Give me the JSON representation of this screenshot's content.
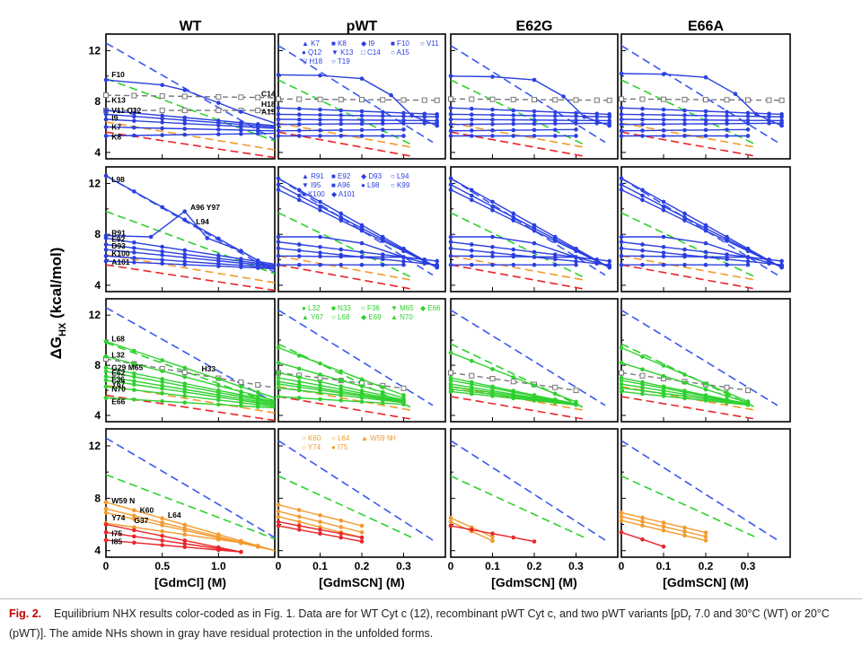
{
  "figure": {
    "y_axis_label": "ΔG",
    "y_axis_sub": "HX",
    "y_axis_unit": " (kcal/mol)",
    "column_titles": [
      "WT",
      "pWT",
      "E62G",
      "E66A"
    ],
    "x_axis_labels": [
      "[GdmCl] (M)",
      "[GdmSCN] (M)",
      "[GdmSCN] (M)",
      "[GdmSCN] (M)"
    ],
    "colors": {
      "blue": "#2b3fe0",
      "green": "#2ed12e",
      "orange": "#f39a2e",
      "red": "#e8262b",
      "gray": "#777777",
      "blue_dash": "#3a58f0",
      "green_dash": "#2ed12e",
      "orange_dash": "#f39a2e",
      "red_dash": "#e8262b"
    }
  },
  "caption": {
    "label": "Fig. 2.",
    "text": "Equilibrium NHX results color-coded as in Fig. 1. Data are for WT Cyt c (12), recombinant pWT Cyt c, and two pWT variants [pD",
    "pd_r": "r",
    "text2": " 7.0 and 30°C (WT) or 20°C (pWT)]. The amide NHs shown in gray have residual protection in the unfolded forms."
  },
  "chart_data": [
    {
      "type": "line",
      "panel": "WT-blue",
      "xlim": [
        0,
        1.5
      ],
      "ylim": [
        3.5,
        13.3
      ],
      "x_ticks": [
        0,
        0.5,
        1.0
      ],
      "y_ticks": [
        4,
        8,
        12
      ],
      "labels": [
        {
          "text": "F10",
          "x": 0.1,
          "y": 9.8
        },
        {
          "text": "K13",
          "x": 0.05,
          "y": 7.9
        },
        {
          "text": "V11 Q12",
          "x": 0.05,
          "y": 7.0
        },
        {
          "text": "I9",
          "x": 0.05,
          "y": 6.4
        },
        {
          "text": "K7",
          "x": 0.05,
          "y": 5.7
        },
        {
          "text": "K8",
          "x": 0.05,
          "y": 4.9
        },
        {
          "text": "C14",
          "x": 1.36,
          "y": 8.3
        },
        {
          "text": "H18",
          "x": 1.36,
          "y": 7.5
        },
        {
          "text": "A15",
          "x": 1.36,
          "y": 6.8
        }
      ],
      "series": [
        {
          "color": "gray",
          "dash": true,
          "x": [
            0,
            1.5
          ],
          "y": [
            8.5,
            8.3
          ]
        },
        {
          "color": "gray",
          "dash": true,
          "x": [
            0,
            1.5
          ],
          "y": [
            7.2,
            7.3
          ]
        },
        {
          "color": "blue",
          "x": [
            0,
            0.7,
            1.2,
            1.5
          ],
          "y": [
            9.7,
            8.9,
            7.2,
            6.4
          ]
        },
        {
          "color": "blue",
          "x": [
            0,
            0.5,
            1.2,
            1.5
          ],
          "y": [
            7.2,
            7.0,
            6.5,
            6.0
          ]
        },
        {
          "color": "blue",
          "x": [
            0,
            0.5,
            1.2,
            1.5
          ],
          "y": [
            6.9,
            6.8,
            6.4,
            6.0
          ]
        },
        {
          "color": "blue",
          "x": [
            0,
            0.5,
            1.2,
            1.5
          ],
          "y": [
            6.4,
            6.3,
            6.2,
            5.9
          ]
        },
        {
          "color": "blue",
          "x": [
            0,
            0.5,
            1.2,
            1.5
          ],
          "y": [
            5.9,
            5.9,
            5.8,
            5.6
          ]
        },
        {
          "color": "blue",
          "x": [
            0,
            0.5,
            1.2,
            1.5
          ],
          "y": [
            5.3,
            5.5,
            5.6,
            5.5
          ]
        }
      ]
    },
    {
      "type": "line",
      "panel": "pWT-blue",
      "xlim": [
        0,
        0.4
      ],
      "ylim": [
        3.5,
        13.3
      ],
      "x_ticks": [
        0,
        0.1,
        0.2,
        0.3
      ],
      "y_ticks": [
        4,
        8,
        12
      ],
      "legend": [
        "K7",
        "K8",
        "I9",
        "F10",
        "V11",
        "Q12",
        "K13",
        "C14",
        "A15",
        "H18",
        "T19"
      ],
      "series": [
        {
          "color": "gray",
          "dash": true,
          "x": [
            0,
            0.38
          ],
          "y": [
            8.2,
            8.3
          ]
        },
        {
          "color": "blue",
          "x": [
            0,
            0.2,
            0.3,
            0.38
          ],
          "y": [
            10.2,
            9.9,
            7.8,
            6.2
          ]
        },
        {
          "color": "blue",
          "x": [
            0,
            0.2,
            0.38
          ],
          "y": [
            7.4,
            7.3,
            7.0
          ]
        },
        {
          "color": "blue",
          "x": [
            0,
            0.2,
            0.38
          ],
          "y": [
            6.8,
            6.9,
            6.8
          ]
        },
        {
          "color": "blue",
          "x": [
            0,
            0.2,
            0.38
          ],
          "y": [
            6.4,
            6.5,
            6.4
          ]
        },
        {
          "color": "blue",
          "x": [
            0,
            0.2,
            0.38
          ],
          "y": [
            5.6,
            5.6,
            5.6
          ]
        },
        {
          "color": "blue",
          "x": [
            0,
            0.2,
            0.35
          ],
          "y": [
            5.3,
            5.4,
            5.3
          ]
        }
      ]
    }
  ]
}
